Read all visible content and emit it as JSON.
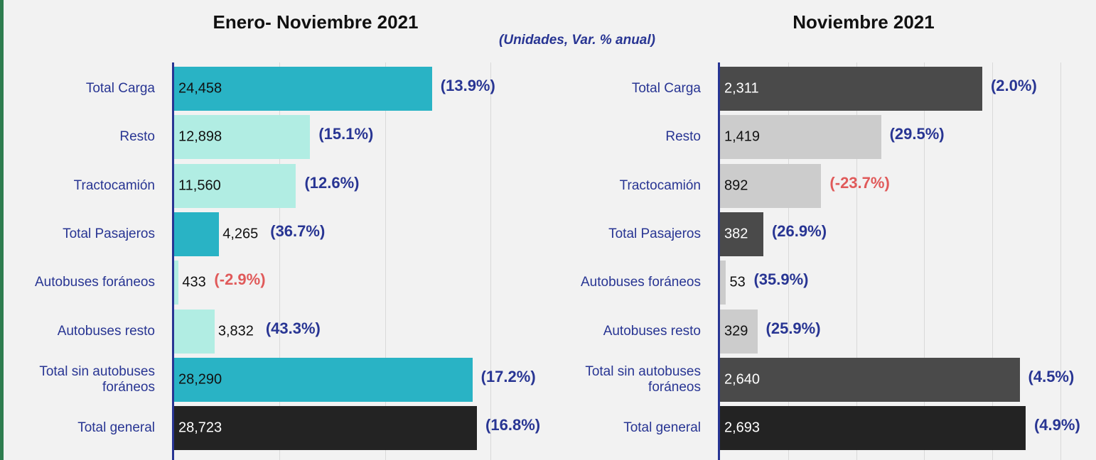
{
  "chart_data": [
    {
      "type": "hbar",
      "title": "Enero- Noviembre 2021",
      "subtitle": "(Unidades, Var. % anual)",
      "categories": [
        "Total Carga",
        "Resto",
        "Tractocamión",
        "Total Pasajeros",
        "Autobuses foráneos",
        "Autobuses resto",
        "Total sin autobuses foráneos",
        "Total general"
      ],
      "values": [
        24458,
        12898,
        11560,
        4265,
        433,
        3832,
        28290,
        28723
      ],
      "value_labels": [
        "24,458",
        "12,898",
        "11,560",
        "4,265",
        "433",
        "3,832",
        "28,290",
        "28,723"
      ],
      "colors": [
        "#29b3c5",
        "#b1ede3",
        "#b1ede3",
        "#29b3c5",
        "#b1ede3",
        "#b1ede3",
        "#29b3c5",
        "#232323"
      ],
      "annotations": [
        "(13.9%)",
        "(15.1%)",
        "(12.6%)",
        "(36.7%)",
        "(-2.9%)",
        "(43.3%)",
        "(17.2%)",
        "(16.8%)"
      ],
      "annotation_colors": [
        "#283593",
        "#283593",
        "#283593",
        "#283593",
        "#e05a5a",
        "#283593",
        "#283593",
        "#283593"
      ],
      "xlim": [
        0,
        30000
      ],
      "xticks": [
        10000,
        20000,
        30000
      ],
      "grid": true
    },
    {
      "type": "hbar",
      "title": "Noviembre 2021",
      "categories": [
        "Total Carga",
        "Resto",
        "Tractocamión",
        "Total Pasajeros",
        "Autobuses foráneos",
        "Autobuses resto",
        "Total sin autobuses foráneos",
        "Total general"
      ],
      "values": [
        2311,
        1419,
        892,
        382,
        53,
        329,
        2640,
        2693
      ],
      "value_labels": [
        "2,311",
        "1,419",
        "892",
        "382",
        "53",
        "329",
        "2,640",
        "2,693"
      ],
      "colors": [
        "#4a4a4a",
        "#cccccc",
        "#cccccc",
        "#4a4a4a",
        "#cccccc",
        "#cccccc",
        "#4a4a4a",
        "#232323"
      ],
      "annotations": [
        "(2.0%)",
        "(29.5%)",
        "(-23.7%)",
        "(26.9%)",
        "(35.9%)",
        "(25.9%)",
        "(4.5%)",
        "(4.9%)"
      ],
      "annotation_colors": [
        "#283593",
        "#283593",
        "#e05a5a",
        "#283593",
        "#283593",
        "#283593",
        "#283593",
        "#283593"
      ],
      "xlim": [
        0,
        3000
      ],
      "xticks": [
        600,
        1200,
        1800,
        2400,
        3000
      ],
      "grid": true
    }
  ]
}
